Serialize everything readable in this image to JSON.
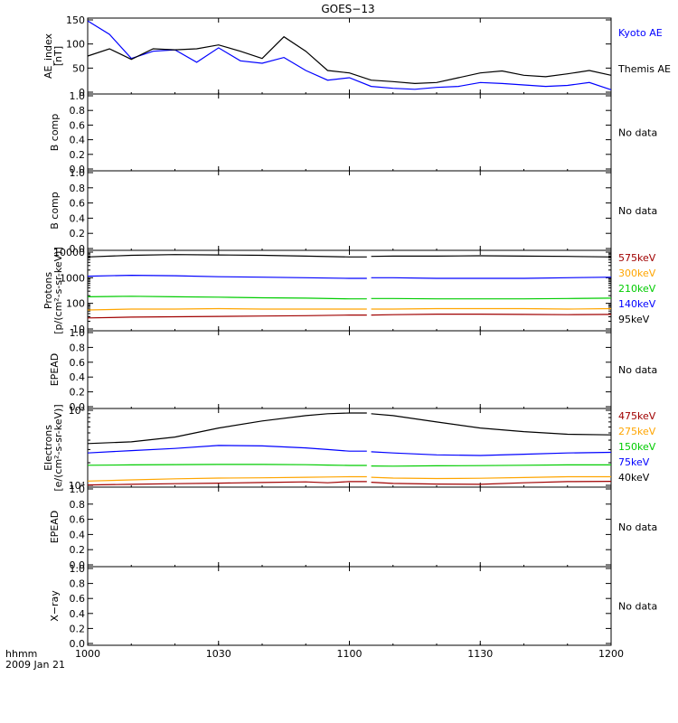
{
  "title": "GOES−13",
  "time_label": "hhmm",
  "date_label": "2009 Jan 21",
  "x_ticks": [
    "1000",
    "1030",
    "1100",
    "1130",
    "1200"
  ],
  "colors": {
    "black": "#000000",
    "blue": "#0000ff",
    "green": "#00cc00",
    "orange": "#ffa500",
    "darkred": "#a00000"
  },
  "chart_data": [
    {
      "type": "line",
      "panel": "ae",
      "ylabel": "AE_index [nT]",
      "ylim": [
        0,
        150
      ],
      "yticks": [
        "0",
        "50",
        "100",
        "150"
      ],
      "x": [
        1000,
        1005,
        1010,
        1015,
        1020,
        1025,
        1030,
        1035,
        1040,
        1045,
        1050,
        1055,
        1100,
        1105,
        1110,
        1115,
        1120,
        1125,
        1130,
        1135,
        1140,
        1145,
        1150,
        1155,
        1200
      ],
      "series": [
        {
          "name": "Kyoto AE",
          "color": "#0000ff",
          "values": [
            148,
            120,
            70,
            85,
            88,
            62,
            92,
            65,
            60,
            72,
            45,
            25,
            30,
            12,
            8,
            6,
            10,
            12,
            20,
            18,
            15,
            12,
            14,
            20,
            5
          ]
        },
        {
          "name": "Themis AE",
          "color": "#000000",
          "values": [
            75,
            90,
            68,
            90,
            88,
            90,
            98,
            85,
            70,
            115,
            85,
            45,
            40,
            25,
            22,
            18,
            20,
            30,
            40,
            44,
            35,
            32,
            38,
            45,
            35
          ]
        }
      ]
    },
    {
      "type": "line",
      "panel": "empty",
      "ylabel": "B comp",
      "ylim": [
        0,
        1
      ],
      "yticks": [
        "0.0",
        "0.2",
        "0.4",
        "0.6",
        "0.8",
        "1.0"
      ],
      "note": "No data"
    },
    {
      "type": "line",
      "panel": "empty",
      "ylabel": "B comp",
      "ylim": [
        0,
        1
      ],
      "yticks": [
        "0.0",
        "0.2",
        "0.4",
        "0.6",
        "0.8",
        "1.0"
      ],
      "note": "No data"
    },
    {
      "type": "line",
      "panel": "protons",
      "ylabel": "Protons [p/(cm²-s-sr-keV)]",
      "yscale": "log",
      "ylim": [
        10,
        10000
      ],
      "yticks": [
        "10",
        "100",
        "1000",
        "10000"
      ],
      "gap": [
        1104,
        1105
      ],
      "x": [
        1000,
        1010,
        1020,
        1030,
        1040,
        1050,
        1100,
        1104,
        1105,
        1110,
        1120,
        1130,
        1140,
        1150,
        1200
      ],
      "series": [
        {
          "name": "95keV",
          "color": "#000000",
          "values": [
            6500,
            7500,
            8000,
            7800,
            7500,
            7000,
            6500,
            6500,
            6800,
            7000,
            7000,
            7200,
            7000,
            6800,
            6500
          ]
        },
        {
          "name": "140keV",
          "color": "#0000ff",
          "values": [
            1150,
            1250,
            1200,
            1100,
            1050,
            1000,
            950,
            950,
            1000,
            1000,
            950,
            950,
            950,
            1000,
            1050
          ]
        },
        {
          "name": "210keV",
          "color": "#00cc00",
          "values": [
            180,
            190,
            180,
            175,
            165,
            160,
            150,
            150,
            155,
            155,
            150,
            150,
            150,
            155,
            160
          ]
        },
        {
          "name": "300keV",
          "color": "#ffa500",
          "values": [
            55,
            60,
            60,
            62,
            60,
            60,
            60,
            60,
            60,
            60,
            62,
            62,
            62,
            60,
            62
          ]
        },
        {
          "name": "575keV",
          "color": "#a00000",
          "values": [
            27,
            29,
            30,
            31,
            32,
            33,
            35,
            35,
            35,
            36,
            38,
            38,
            37,
            36,
            37
          ]
        }
      ]
    },
    {
      "type": "line",
      "panel": "empty",
      "ylabel": "EPEAD",
      "ylim": [
        0,
        1
      ],
      "yticks": [
        "0.0",
        "0.2",
        "0.4",
        "0.6",
        "0.8",
        "1.0"
      ],
      "note": "No data"
    },
    {
      "type": "line",
      "panel": "electrons",
      "ylabel": "Electrons [e/(cm²-s-sr-keV)]",
      "yscale": "log",
      "ylim": [
        10000,
        100000
      ],
      "yticks": [
        "10⁴",
        "10⁵"
      ],
      "gap": [
        1104,
        1105
      ],
      "x": [
        1000,
        1010,
        1020,
        1030,
        1040,
        1050,
        1055,
        1100,
        1104,
        1105,
        1110,
        1120,
        1130,
        1140,
        1150,
        1200
      ],
      "series": [
        {
          "name": "40keV",
          "color": "#000000",
          "values": [
            36000,
            38000,
            44000,
            58000,
            72000,
            85000,
            90000,
            92000,
            92000,
            90000,
            85000,
            70000,
            58000,
            52000,
            48000,
            47000
          ]
        },
        {
          "name": "75keV",
          "color": "#0000ff",
          "values": [
            27000,
            29000,
            31000,
            34000,
            33500,
            31500,
            30000,
            28500,
            28500,
            28000,
            27000,
            25500,
            25000,
            26000,
            27000,
            27500
          ]
        },
        {
          "name": "150keV",
          "color": "#00cc00",
          "values": [
            18500,
            18700,
            18900,
            19000,
            19000,
            18800,
            18600,
            18400,
            18400,
            18100,
            18000,
            18200,
            18300,
            18500,
            18700,
            18700
          ]
        },
        {
          "name": "275keV",
          "color": "#ffa500",
          "values": [
            11400,
            11800,
            12200,
            12500,
            12600,
            12800,
            12900,
            13000,
            13000,
            12800,
            12500,
            12300,
            12400,
            12700,
            13000,
            13000
          ]
        },
        {
          "name": "475keV",
          "color": "#a00000",
          "values": [
            10100,
            10300,
            10500,
            10700,
            10900,
            11100,
            10800,
            11200,
            11200,
            11000,
            10600,
            10400,
            10300,
            10800,
            11200,
            11300
          ]
        }
      ]
    },
    {
      "type": "line",
      "panel": "empty",
      "ylabel": "EPEAD",
      "ylim": [
        0,
        1
      ],
      "yticks": [
        "0.0",
        "0.2",
        "0.4",
        "0.6",
        "0.8",
        "1.0"
      ],
      "note": "No data"
    },
    {
      "type": "line",
      "panel": "empty",
      "ylabel": "X−ray",
      "ylim": [
        0,
        1
      ],
      "yticks": [
        "0.0",
        "0.2",
        "0.4",
        "0.6",
        "0.8",
        "1.0"
      ],
      "note": "No data"
    }
  ]
}
